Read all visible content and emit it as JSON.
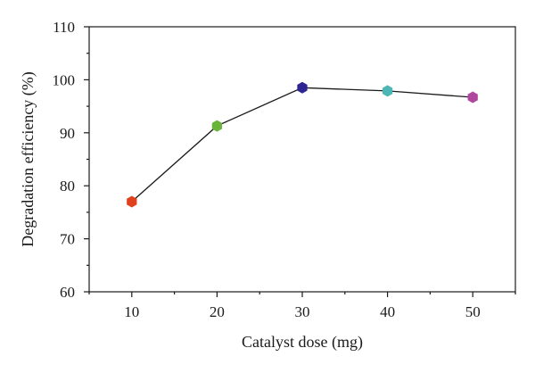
{
  "chart_data": {
    "type": "line",
    "x": [
      10,
      20,
      30,
      40,
      50
    ],
    "y": [
      77.0,
      91.3,
      98.5,
      97.9,
      96.7
    ],
    "point_colors": [
      "#e0401c",
      "#6bb43a",
      "#2d2592",
      "#4cb6b5",
      "#b0479f"
    ],
    "xlabel": "Catalyst dose (mg)",
    "ylabel": "Degradation efficiency (%)",
    "xlim": [
      5,
      55
    ],
    "ylim": [
      60,
      110
    ],
    "x_ticks": [
      10,
      20,
      30,
      40,
      50
    ],
    "y_ticks": [
      60,
      70,
      80,
      90,
      100,
      110
    ],
    "grid": false,
    "marker": "hexagon"
  }
}
